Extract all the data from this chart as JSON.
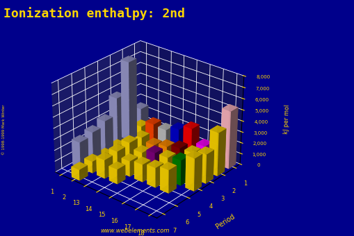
{
  "title": "Ionization enthalpy: 2nd",
  "title_color": "#FFD700",
  "title_fontsize": 13,
  "bg_color": "#00008B",
  "zlabel": "kJ per mol",
  "period_label": "Period",
  "watermark": "www.webelements.com",
  "ymax": 8000,
  "ytick_labels": [
    "0",
    "1,000",
    "2,000",
    "3,000",
    "4,000",
    "5,000",
    "6,000",
    "7,000",
    "8,000"
  ],
  "group_labels": [
    "1",
    "2",
    "13",
    "14",
    "15",
    "16",
    "17",
    "18"
  ],
  "period_labels": [
    "1",
    "2",
    "3",
    "4",
    "5",
    "6",
    "7"
  ],
  "ie2": {
    "1_1": 2372,
    "1_18": 5251,
    "2_1": 7298,
    "2_2": 1757,
    "2_13": 2427,
    "2_14": 2355,
    "2_15": 2856,
    "2_16": 3388,
    "2_17": 2251,
    "2_18": 3952,
    "3_1": 4562,
    "3_2": 1450,
    "3_13": 1817,
    "3_14": 1577,
    "3_15": 1903,
    "3_16": 2251,
    "3_17": 2297,
    "3_18": 2666,
    "4_1": 3051,
    "4_2": 1145,
    "4_13": 1979,
    "4_14": 1537,
    "4_15": 1980,
    "4_16": 2045,
    "4_17": 2297,
    "4_18": 2963,
    "5_1": 2632,
    "5_2": 965,
    "5_13": 1820,
    "5_14": 1412,
    "5_15": 1600,
    "5_16": 1800,
    "5_17": 2104,
    "6_1": 2350,
    "6_2": 1064,
    "6_13": 1700,
    "6_14": 1340,
    "7_2": 979
  },
  "bar_colors": {
    "1_1": "#9999CC",
    "1_18": "#FFB6C1",
    "2_1": "#9999CC",
    "2_2": "#FFD700",
    "2_13": "#FF4500",
    "2_14": "#C0C0C0",
    "2_15": "#0000CD",
    "2_16": "#FF0000",
    "2_17": "#FF00FF",
    "2_18": "#FFD700",
    "3_1": "#9999CC",
    "3_2": "#FFD700",
    "3_13": "#FFD700",
    "3_14": "#FF8C00",
    "3_15": "#FF8C00",
    "3_16": "#8B0000",
    "3_17": "#FFD700",
    "3_18": "#FFD700",
    "4_1": "#9999CC",
    "4_2": "#FFD700",
    "4_13": "#FFD700",
    "4_14": "#FFD700",
    "4_15": "#800080",
    "4_16": "#FFD700",
    "4_17": "#008000",
    "4_18": "#FFD700",
    "5_1": "#9999CC",
    "5_2": "#FFD700",
    "5_13": "#FFD700",
    "5_14": "#FFD700",
    "5_15": "#FFD700",
    "5_16": "#FFD700",
    "5_17": "#FFD700",
    "6_1": "#9999CC",
    "6_2": "#FFD700",
    "6_13": "#FFD700",
    "6_14": "#FFD700",
    "7_2": "#FFD700"
  },
  "floor_color": "#555566",
  "wall_color": "#00008B",
  "grid_color": "#FFFFFF",
  "tick_color": "#FFD700",
  "elev": 28,
  "azim": -50
}
